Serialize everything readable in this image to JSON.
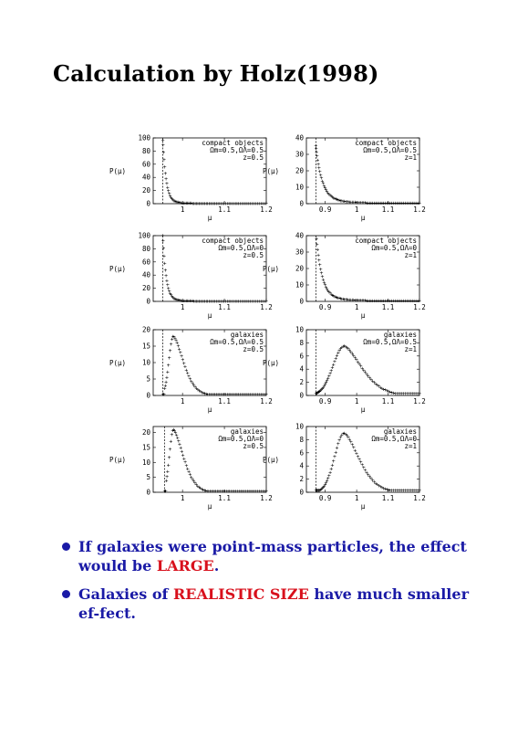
{
  "title": "Calculation by Holz(1998)",
  "bullets": [
    {
      "parts": [
        "If galaxies were point-mass particles, the effect would be ",
        "LARGE",
        "."
      ]
    },
    {
      "parts": [
        "Galaxies of ",
        "REALISTIC SIZE",
        " have much smaller ef-fect."
      ]
    }
  ],
  "colors": {
    "bullet_text": "#1a1aa6",
    "highlight": "#d8101c"
  },
  "chart_data": [
    {
      "type": "scatter",
      "lines": [
        "compact objects",
        "Ωm=0.5,ΩΛ=0.5",
        "z=0.5"
      ],
      "ylabel": "P(μ)",
      "xlabel": "μ",
      "yticks": [
        0,
        20,
        40,
        60,
        80,
        100
      ],
      "ylim": [
        0,
        100
      ],
      "xticks": [
        {
          "v": 1,
          "t": "1"
        },
        {
          "v": 1.1,
          "t": "1.1"
        },
        {
          "v": 1.2,
          "t": "1.2"
        }
      ],
      "xlim": [
        0.93,
        1.2
      ],
      "vline": 0.953,
      "curve": {
        "form": "spike",
        "mu0": 0.953,
        "peak": 95,
        "width": 0.008,
        "tail": 2,
        "tailw": 0.06
      }
    },
    {
      "type": "scatter",
      "lines": [
        "compact objects",
        "Ωm=0.5,ΩΛ=0.5",
        "z=1"
      ],
      "ylabel": "P(μ)",
      "xlabel": "μ",
      "yticks": [
        0,
        10,
        20,
        30,
        40
      ],
      "ylim": [
        0,
        40
      ],
      "xticks": [
        {
          "v": 0.9,
          "t": "0.9"
        },
        {
          "v": 1,
          "t": "1"
        },
        {
          "v": 1.1,
          "t": "1.1"
        },
        {
          "v": 1.2,
          "t": "1.2"
        }
      ],
      "xlim": [
        0.84,
        1.2
      ],
      "vline": 0.87,
      "curve": {
        "form": "spike",
        "mu0": 0.87,
        "peak": 32,
        "width": 0.02,
        "tail": 3,
        "tailw": 0.09
      }
    },
    {
      "type": "scatter",
      "lines": [
        "compact objects",
        "Ωm=0.5,ΩΛ=0",
        "z=0.5"
      ],
      "ylabel": "P(μ)",
      "xlabel": "μ",
      "yticks": [
        0,
        20,
        40,
        60,
        80,
        100
      ],
      "ylim": [
        0,
        100
      ],
      "xticks": [
        {
          "v": 1,
          "t": "1"
        },
        {
          "v": 1.1,
          "t": "1.1"
        },
        {
          "v": 1.2,
          "t": "1.2"
        }
      ],
      "xlim": [
        0.93,
        1.2
      ],
      "vline": 0.953,
      "curve": {
        "form": "spike",
        "mu0": 0.953,
        "peak": 98,
        "width": 0.008,
        "tail": 2,
        "tailw": 0.06
      }
    },
    {
      "type": "scatter",
      "lines": [
        "compact objects",
        "Ωm=0.5,ΩΛ=0",
        "z=1"
      ],
      "ylabel": "P(μ)",
      "xlabel": "μ",
      "yticks": [
        0,
        10,
        20,
        30,
        40
      ],
      "ylim": [
        0,
        40
      ],
      "xticks": [
        {
          "v": 0.9,
          "t": "0.9"
        },
        {
          "v": 1,
          "t": "1"
        },
        {
          "v": 1.1,
          "t": "1.1"
        },
        {
          "v": 1.2,
          "t": "1.2"
        }
      ],
      "xlim": [
        0.84,
        1.2
      ],
      "vline": 0.87,
      "curve": {
        "form": "spike",
        "mu0": 0.87,
        "peak": 40,
        "width": 0.018,
        "tail": 3,
        "tailw": 0.09
      }
    },
    {
      "type": "scatter",
      "lines": [
        "galaxies",
        "Ωm=0.5,ΩΛ=0.5",
        "z=0.5"
      ],
      "ylabel": "P(μ)",
      "xlabel": "μ",
      "yticks": [
        0,
        5,
        10,
        15,
        20
      ],
      "ylim": [
        0,
        20
      ],
      "xticks": [
        {
          "v": 1,
          "t": "1"
        },
        {
          "v": 1.1,
          "t": "1.1"
        },
        {
          "v": 1.2,
          "t": "1.2"
        }
      ],
      "xlim": [
        0.93,
        1.2
      ],
      "vline": 0.953,
      "curve": {
        "form": "hump",
        "mu0": 0.953,
        "peak": 18,
        "mode": 0.978,
        "rise": 0.01,
        "fall": 0.028
      }
    },
    {
      "type": "scatter",
      "lines": [
        "galaxies",
        "Ωm=0.5,ΩΛ=0.5",
        "z=1"
      ],
      "ylabel": "P(μ)",
      "xlabel": "μ",
      "yticks": [
        0,
        2,
        4,
        6,
        8,
        10
      ],
      "ylim": [
        0,
        10
      ],
      "xticks": [
        {
          "v": 0.9,
          "t": "0.9"
        },
        {
          "v": 1,
          "t": "1"
        },
        {
          "v": 1.1,
          "t": "1.1"
        },
        {
          "v": 1.2,
          "t": "1.2"
        }
      ],
      "xlim": [
        0.84,
        1.2
      ],
      "vline": 0.87,
      "curve": {
        "form": "hump",
        "mu0": 0.87,
        "peak": 7.5,
        "mode": 0.96,
        "rise": 0.035,
        "fall": 0.065
      }
    },
    {
      "type": "scatter",
      "lines": [
        "galaxies",
        "Ωm=0.5,ΩΛ=0",
        "z=0.5"
      ],
      "ylabel": "P(μ)",
      "xlabel": "μ",
      "yticks": [
        0,
        5,
        10,
        15,
        20
      ],
      "ylim": [
        0,
        22
      ],
      "xticks": [
        {
          "v": 1,
          "t": "1"
        },
        {
          "v": 1.1,
          "t": "1.1"
        },
        {
          "v": 1.2,
          "t": "1.2"
        }
      ],
      "xlim": [
        0.93,
        1.2
      ],
      "vline": 0.957,
      "curve": {
        "form": "hump",
        "mu0": 0.957,
        "peak": 21,
        "mode": 0.978,
        "rise": 0.009,
        "fall": 0.028
      }
    },
    {
      "type": "scatter",
      "lines": [
        "galaxies",
        "Ωm=0.5,ΩΛ=0",
        "z=1"
      ],
      "ylabel": "P(μ)",
      "xlabel": "μ",
      "yticks": [
        0,
        2,
        4,
        6,
        8,
        10
      ],
      "ylim": [
        0,
        10
      ],
      "xticks": [
        {
          "v": 0.9,
          "t": "0.9"
        },
        {
          "v": 1,
          "t": "1"
        },
        {
          "v": 1.1,
          "t": "1.1"
        },
        {
          "v": 1.2,
          "t": "1.2"
        }
      ],
      "xlim": [
        0.84,
        1.2
      ],
      "vline": 0.87,
      "curve": {
        "form": "hump",
        "mu0": 0.87,
        "peak": 9,
        "mode": 0.96,
        "rise": 0.03,
        "fall": 0.055
      }
    }
  ]
}
